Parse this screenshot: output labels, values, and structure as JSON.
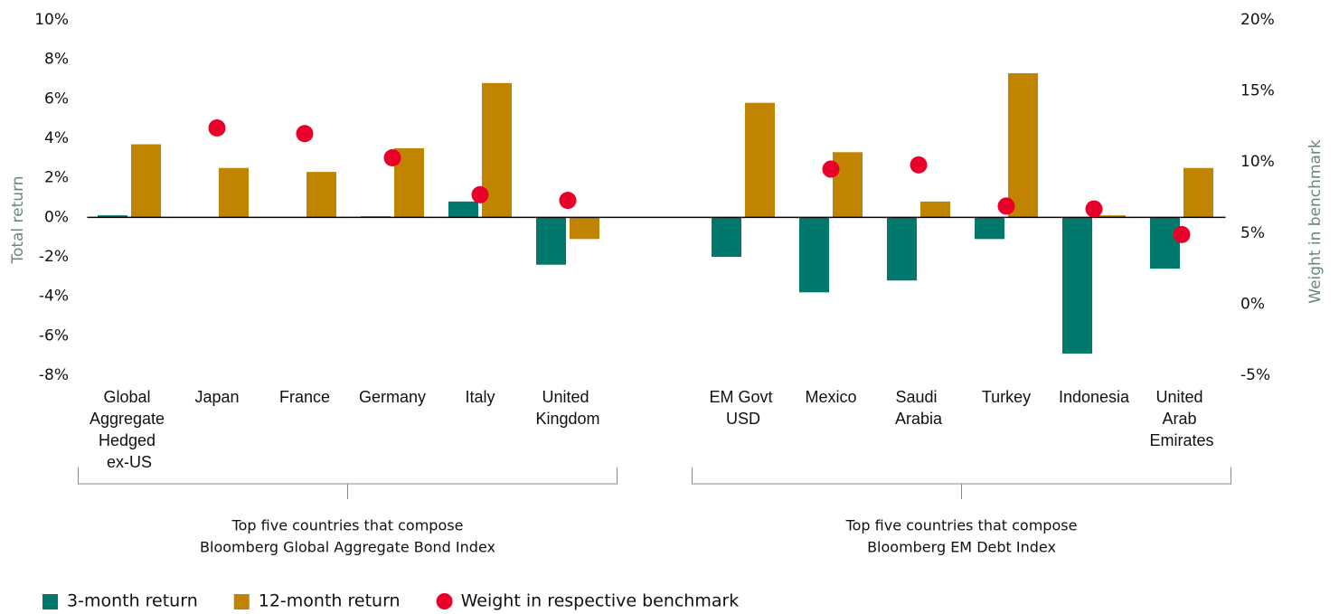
{
  "chart_data": {
    "type": "bar",
    "categories": [
      "Global Aggregate Hedged ex-US",
      "Japan",
      "France",
      "Germany",
      "Italy",
      "United Kingdom",
      null,
      "EM Govt USD",
      "Mexico",
      "Saudi Arabia",
      "Turkey",
      "Indonesia",
      "United Arab Emirates"
    ],
    "series": [
      {
        "name": "3-month return",
        "color": "#00786c",
        "type": "bar",
        "values": [
          0.1,
          0,
          0,
          0.05,
          0.8,
          -2.4,
          null,
          -2.0,
          -3.8,
          -3.2,
          -1.1,
          -6.9,
          -2.6
        ]
      },
      {
        "name": "12-month return",
        "color": "#c08400",
        "type": "bar",
        "values": [
          3.7,
          2.5,
          2.3,
          3.5,
          6.8,
          -1.1,
          null,
          5.8,
          3.3,
          0.8,
          7.3,
          0.1,
          2.5
        ]
      },
      {
        "name": "Weight in respective benchmark",
        "color": "#e8002a",
        "type": "scatter",
        "axis": "y2",
        "values": [
          null,
          12.4,
          12.0,
          10.3,
          7.7,
          7.3,
          null,
          null,
          9.5,
          9.8,
          6.9,
          6.7,
          4.9
        ]
      }
    ],
    "ylabel": "Total return",
    "y2label": "Weight in benchmark",
    "ylim": [
      -8,
      10
    ],
    "yticks": [
      {
        "value": -8,
        "label": "-8%"
      },
      {
        "value": -6,
        "label": "-6%"
      },
      {
        "value": -4,
        "label": "-4%"
      },
      {
        "value": -2,
        "label": "-2%"
      },
      {
        "value": 0,
        "label": "0%"
      },
      {
        "value": 2,
        "label": "2%"
      },
      {
        "value": 4,
        "label": "4%"
      },
      {
        "value": 6,
        "label": "6%"
      },
      {
        "value": 8,
        "label": "8%"
      },
      {
        "value": 10,
        "label": "10%"
      }
    ],
    "y2lim": [
      -5,
      20
    ],
    "y2ticks": [
      {
        "value": -5,
        "label": "-5%"
      },
      {
        "value": 0,
        "label": "0%"
      },
      {
        "value": 5,
        "label": "5%"
      },
      {
        "value": 10,
        "label": "10%"
      },
      {
        "value": 15,
        "label": "15%"
      },
      {
        "value": 20,
        "label": "20%"
      }
    ],
    "annotations": [
      [
        "Top five countries that compose",
        "Bloomberg Global Aggregate Bond Index"
      ],
      [
        "Top five countries that compose",
        "Bloomberg EM Debt Index"
      ]
    ],
    "legend": "bottom-left"
  }
}
